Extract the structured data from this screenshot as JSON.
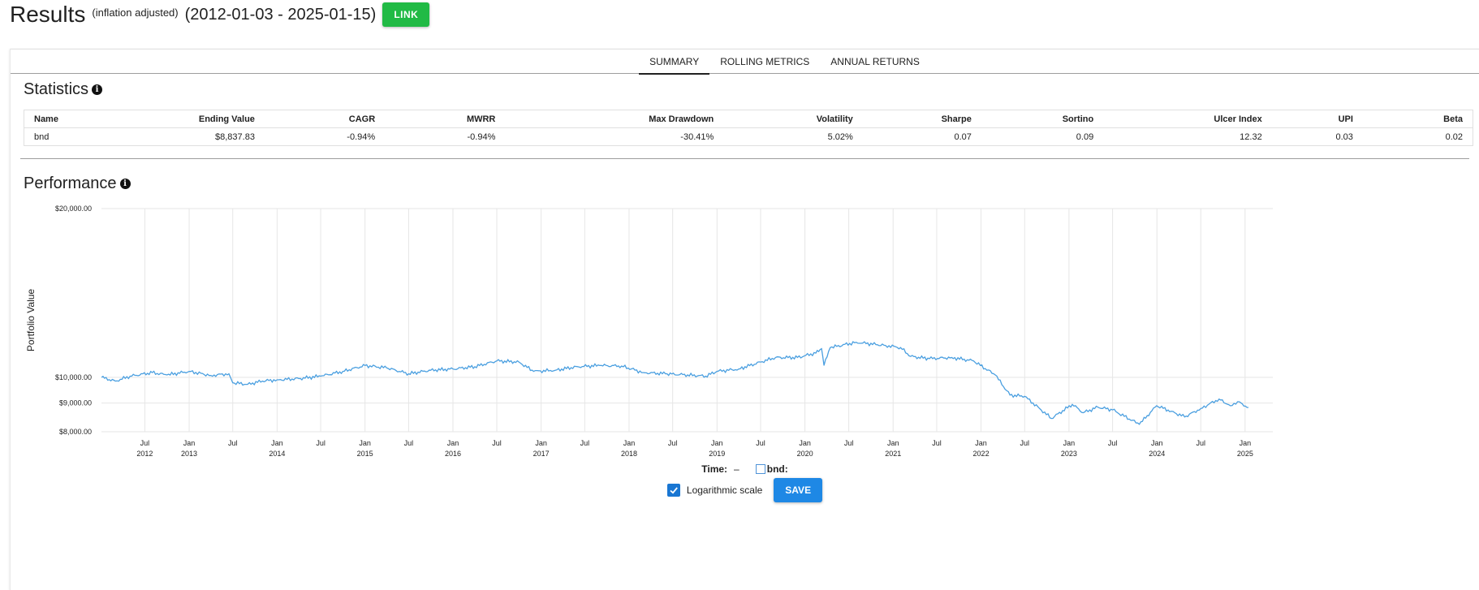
{
  "header": {
    "title": "Results",
    "note": "(inflation adjusted)",
    "date_range": "(2012-01-03 - 2025-01-15)",
    "link_label": "LINK",
    "link_color": "#21ba45"
  },
  "tabs": [
    {
      "label": "SUMMARY",
      "active": true
    },
    {
      "label": "ROLLING METRICS",
      "active": false
    },
    {
      "label": "ANNUAL RETURNS",
      "active": false
    }
  ],
  "statistics": {
    "title": "Statistics",
    "info_icon": "info-icon",
    "columns": [
      "Name",
      "Ending Value",
      "CAGR",
      "MWRR",
      "Max Drawdown",
      "Volatility",
      "Sharpe",
      "Sortino",
      "Ulcer Index",
      "UPI",
      "Beta"
    ],
    "rows": [
      [
        "bnd",
        "$8,837.83",
        "-0.94%",
        "-0.94%",
        "-30.41%",
        "5.02%",
        "0.07",
        "0.09",
        "12.32",
        "0.03",
        "0.02"
      ]
    ]
  },
  "performance": {
    "title": "Performance",
    "info_icon": "info-icon",
    "time_label": "Time:",
    "time_value": "–",
    "legend_series": "bnd:",
    "log_scale_label": "Logarithmic scale",
    "log_scale_checked": true,
    "save_label": "SAVE",
    "save_color": "#1e88e5"
  },
  "chart_data": {
    "type": "line",
    "title": "",
    "xlabel": "",
    "ylabel": "Portfolio Value",
    "y_scale": "log",
    "ylim": [
      8000,
      20000
    ],
    "y_ticks": [
      {
        "value": 20000,
        "label": "$20,000.00"
      },
      {
        "value": 10000,
        "label": "$10,000.00"
      },
      {
        "value": 9000,
        "label": "$9,000.00"
      },
      {
        "value": 8000,
        "label": "$8,000.00"
      }
    ],
    "xlim": [
      "2012-01-03",
      "2025-01-15"
    ],
    "x_ticks": [
      {
        "date": "2012-07-01",
        "month": "Jul",
        "year": "2012"
      },
      {
        "date": "2013-01-01",
        "month": "Jan",
        "year": "2013"
      },
      {
        "date": "2013-07-01",
        "month": "Jul",
        "year": ""
      },
      {
        "date": "2014-01-01",
        "month": "Jan",
        "year": "2014"
      },
      {
        "date": "2014-07-01",
        "month": "Jul",
        "year": ""
      },
      {
        "date": "2015-01-01",
        "month": "Jan",
        "year": "2015"
      },
      {
        "date": "2015-07-01",
        "month": "Jul",
        "year": ""
      },
      {
        "date": "2016-01-01",
        "month": "Jan",
        "year": "2016"
      },
      {
        "date": "2016-07-01",
        "month": "Jul",
        "year": ""
      },
      {
        "date": "2017-01-01",
        "month": "Jan",
        "year": "2017"
      },
      {
        "date": "2017-07-01",
        "month": "Jul",
        "year": ""
      },
      {
        "date": "2018-01-01",
        "month": "Jan",
        "year": "2018"
      },
      {
        "date": "2018-07-01",
        "month": "Jul",
        "year": ""
      },
      {
        "date": "2019-01-01",
        "month": "Jan",
        "year": "2019"
      },
      {
        "date": "2019-07-01",
        "month": "Jul",
        "year": ""
      },
      {
        "date": "2020-01-01",
        "month": "Jan",
        "year": "2020"
      },
      {
        "date": "2020-07-01",
        "month": "Jul",
        "year": ""
      },
      {
        "date": "2021-01-01",
        "month": "Jan",
        "year": "2021"
      },
      {
        "date": "2021-07-01",
        "month": "Jul",
        "year": ""
      },
      {
        "date": "2022-01-01",
        "month": "Jan",
        "year": "2022"
      },
      {
        "date": "2022-07-01",
        "month": "Jul",
        "year": ""
      },
      {
        "date": "2023-01-01",
        "month": "Jan",
        "year": "2023"
      },
      {
        "date": "2023-07-01",
        "month": "Jul",
        "year": ""
      },
      {
        "date": "2024-01-01",
        "month": "Jan",
        "year": "2024"
      },
      {
        "date": "2024-07-01",
        "month": "Jul",
        "year": ""
      },
      {
        "date": "2025-01-01",
        "month": "Jan",
        "year": "2025"
      }
    ],
    "grid": true,
    "series": [
      {
        "name": "bnd",
        "color": "#4a9fe0",
        "points": [
          [
            "2012-01-03",
            10000
          ],
          [
            "2012-03-01",
            9850
          ],
          [
            "2012-05-01",
            10050
          ],
          [
            "2012-08-01",
            10200
          ],
          [
            "2012-10-01",
            10100
          ],
          [
            "2013-01-01",
            10250
          ],
          [
            "2013-04-01",
            10080
          ],
          [
            "2013-06-15",
            10150
          ],
          [
            "2013-07-01",
            9780
          ],
          [
            "2013-09-01",
            9720
          ],
          [
            "2013-11-01",
            9850
          ],
          [
            "2014-01-01",
            9900
          ],
          [
            "2014-04-01",
            9950
          ],
          [
            "2014-07-01",
            10050
          ],
          [
            "2014-10-01",
            10250
          ],
          [
            "2015-01-01",
            10500
          ],
          [
            "2015-04-01",
            10400
          ],
          [
            "2015-07-01",
            10150
          ],
          [
            "2015-10-01",
            10300
          ],
          [
            "2016-01-01",
            10350
          ],
          [
            "2016-04-01",
            10450
          ],
          [
            "2016-07-01",
            10700
          ],
          [
            "2016-10-01",
            10650
          ],
          [
            "2016-12-01",
            10250
          ],
          [
            "2017-03-01",
            10300
          ],
          [
            "2017-06-01",
            10450
          ],
          [
            "2017-09-01",
            10500
          ],
          [
            "2017-12-01",
            10480
          ],
          [
            "2018-03-01",
            10200
          ],
          [
            "2018-06-01",
            10150
          ],
          [
            "2018-09-01",
            10100
          ],
          [
            "2018-11-15",
            10050
          ],
          [
            "2019-01-01",
            10250
          ],
          [
            "2019-04-01",
            10350
          ],
          [
            "2019-07-01",
            10650
          ],
          [
            "2019-09-01",
            10850
          ],
          [
            "2019-12-01",
            10850
          ],
          [
            "2020-02-15",
            11050
          ],
          [
            "2020-03-10",
            11250
          ],
          [
            "2020-03-20",
            10500
          ],
          [
            "2020-04-15",
            11300
          ],
          [
            "2020-08-01",
            11550
          ],
          [
            "2020-12-01",
            11400
          ],
          [
            "2021-02-01",
            11300
          ],
          [
            "2021-03-15",
            10900
          ],
          [
            "2021-06-01",
            10800
          ],
          [
            "2021-09-01",
            10850
          ],
          [
            "2021-12-01",
            10700
          ],
          [
            "2022-03-01",
            10100
          ],
          [
            "2022-05-01",
            9300
          ],
          [
            "2022-07-01",
            9250
          ],
          [
            "2022-09-01",
            8800
          ],
          [
            "2022-10-20",
            8450
          ],
          [
            "2023-01-15",
            8950
          ],
          [
            "2023-03-01",
            8650
          ],
          [
            "2023-05-01",
            8850
          ],
          [
            "2023-07-01",
            8750
          ],
          [
            "2023-10-20",
            8250
          ],
          [
            "2023-12-31",
            8900
          ],
          [
            "2024-03-01",
            8700
          ],
          [
            "2024-04-25",
            8500
          ],
          [
            "2024-07-01",
            8800
          ],
          [
            "2024-09-15",
            9150
          ],
          [
            "2024-11-01",
            8900
          ],
          [
            "2024-12-01",
            9050
          ],
          [
            "2025-01-15",
            8838
          ]
        ]
      }
    ]
  }
}
